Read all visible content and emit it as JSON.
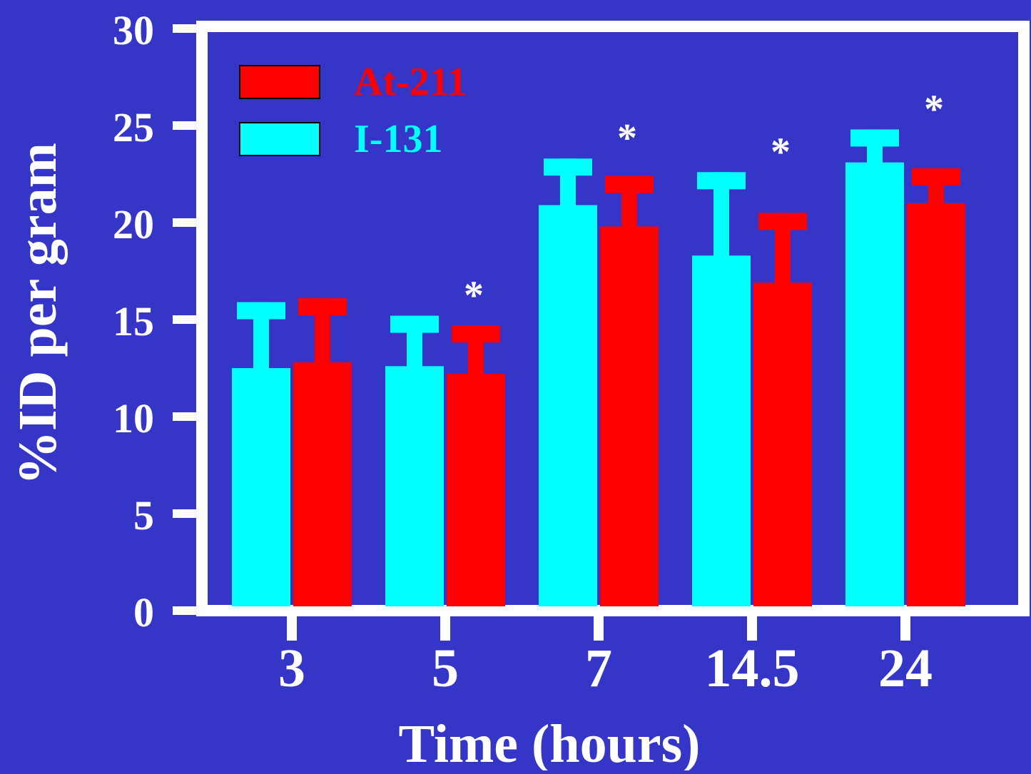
{
  "chart_data": {
    "type": "bar",
    "xlabel": "Time (hours)",
    "ylabel": "%ID per gram",
    "categories": [
      "3",
      "5",
      "7",
      "14.5",
      "24"
    ],
    "ylim": [
      0,
      30
    ],
    "yticks": [
      "0",
      "5",
      "10",
      "15",
      "20",
      "25",
      "30"
    ],
    "grid": false,
    "legend_position": "top-left",
    "series": [
      {
        "name": "I-131",
        "color": "#00ffff",
        "values": [
          12.5,
          12.6,
          20.9,
          18.3,
          23.1
        ],
        "error": [
          3.4,
          2.6,
          2.4,
          4.3,
          1.7
        ]
      },
      {
        "name": "At-211",
        "color": "#ff0000",
        "values": [
          12.8,
          12.2,
          19.8,
          16.9,
          21.0
        ],
        "error": [
          3.3,
          2.5,
          2.6,
          3.6,
          1.8
        ]
      }
    ],
    "significance_marker": "*",
    "significant_categories": [
      false,
      true,
      true,
      true,
      true
    ]
  }
}
